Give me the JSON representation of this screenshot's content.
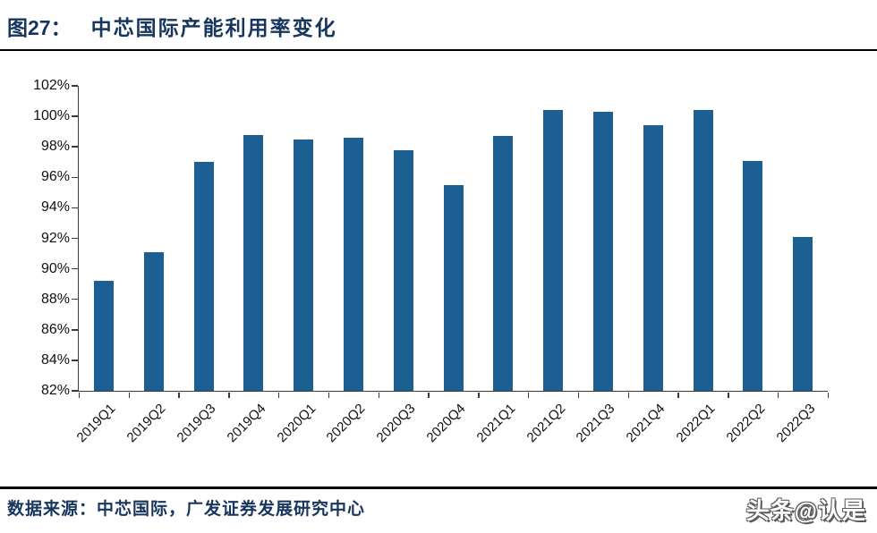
{
  "header": {
    "figure_label": "图27：",
    "title": "中芯国际产能利用率变化"
  },
  "footer": {
    "source_label": "数据来源：",
    "source_text": "中芯国际，广发证券发展研究中心",
    "watermark": "头条@认是"
  },
  "colors": {
    "bar": "#1B5F93",
    "title_text": "#17365D",
    "rule": "#000000",
    "axis": "#3A3A3A",
    "tick_label": "#111111"
  },
  "chart_data": {
    "type": "bar",
    "title": "中芯国际产能利用率变化",
    "categories": [
      "2019Q1",
      "2019Q2",
      "2019Q3",
      "2019Q4",
      "2020Q1",
      "2020Q2",
      "2020Q3",
      "2020Q4",
      "2021Q1",
      "2021Q2",
      "2021Q3",
      "2021Q4",
      "2022Q1",
      "2022Q2",
      "2022Q3"
    ],
    "values": [
      89.2,
      91.1,
      97.0,
      98.8,
      98.5,
      98.6,
      97.8,
      95.5,
      98.7,
      100.4,
      100.3,
      99.4,
      100.4,
      97.1,
      92.1
    ],
    "xlabel": "",
    "ylabel": "",
    "ylim": [
      82,
      102
    ],
    "ytick_step": 2,
    "ytick_format": "percent",
    "xtick_rotation": -45,
    "grid": false,
    "legend": "none",
    "bar_color": "#1B5F93"
  }
}
